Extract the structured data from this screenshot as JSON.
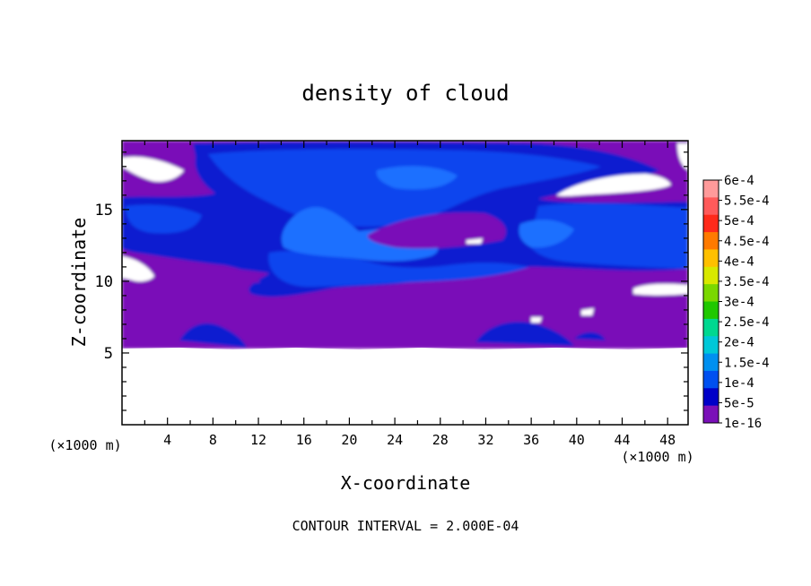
{
  "chart_data": {
    "type": "heatmap",
    "title": "density of cloud",
    "xlabel": "X-coordinate",
    "ylabel": "Z-coordinate",
    "x_unit": "(×1000 m)",
    "y_unit": "(×1000 m)",
    "xlim": [
      0,
      49.8
    ],
    "ylim": [
      0,
      19.8
    ],
    "x_ticks": [
      4,
      8,
      12,
      16,
      20,
      24,
      28,
      32,
      36,
      40,
      44,
      48
    ],
    "y_ticks": [
      5,
      10,
      15
    ],
    "footer": "CONTOUR INTERVAL = 2.000E-04",
    "colorbar": {
      "labels": [
        "6e-4",
        "5.5e-4",
        "5e-4",
        "4.5e-4",
        "4e-4",
        "3.5e-4",
        "3e-4",
        "2.5e-4",
        "2e-4",
        "1.5e-4",
        "1e-4",
        "5e-5",
        "1e-16"
      ],
      "colors": [
        "#ff9a9a",
        "#ff5a5a",
        "#ff2a1a",
        "#ff7a00",
        "#ffc000",
        "#d8e800",
        "#7ad800",
        "#20c800",
        "#00d890",
        "#00c8d8",
        "#0090f0",
        "#0050f0",
        "#0000c8",
        "#7a10b8"
      ]
    },
    "cloud_layer_z_range": [
      5.3,
      19.8
    ]
  },
  "colors": {
    "background_purple": "#7a10b8",
    "blue_dark": "#0a1fd0",
    "blue_mid": "#1144ee",
    "blue_light": "#1a70ff"
  }
}
